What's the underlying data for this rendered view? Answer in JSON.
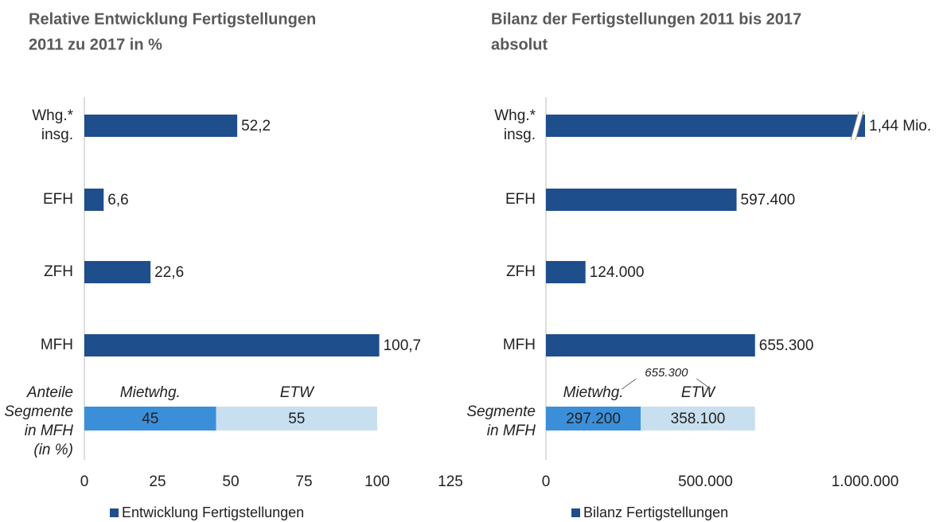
{
  "chart_data": [
    {
      "type": "bar",
      "orientation": "horizontal",
      "title": [
        "Relative Entwicklung Fertigstellungen",
        "2011 zu 2017 in %"
      ],
      "categories": [
        [
          "Whg.*",
          "insg."
        ],
        [
          "EFH"
        ],
        [
          "ZFH"
        ],
        [
          "MFH"
        ]
      ],
      "series": [
        {
          "name": "Entwicklung Fertigstellungen",
          "color": "#1f4e8c",
          "values": [
            52.2,
            6.6,
            22.6,
            100.7
          ],
          "value_labels": [
            "52,2",
            "6,6",
            "22,6",
            "100,7"
          ]
        }
      ],
      "xlim": [
        0,
        125
      ],
      "xticks": [
        0,
        25,
        50,
        75,
        100,
        125
      ],
      "segments": {
        "label": [
          "Anteile",
          "Segmente",
          "in MFH",
          "(in %)"
        ],
        "series": [
          {
            "name": "Mietwhg.",
            "color": "#3b8fd9",
            "values": [
              45
            ]
          },
          {
            "name": "ETW",
            "color": "#c8dff0",
            "values": [
              55
            ]
          }
        ]
      }
    },
    {
      "type": "bar",
      "orientation": "horizontal",
      "title": [
        "Bilanz der Fertigstellungen 2011 bis 2017",
        "absolut"
      ],
      "categories": [
        [
          "Whg.*",
          "insg."
        ],
        [
          "EFH"
        ],
        [
          "ZFH"
        ],
        [
          "MFH"
        ]
      ],
      "series": [
        {
          "name": "Bilanz Fertigstellungen",
          "color": "#1f4e8c",
          "values": [
            1440000,
            597400,
            124000,
            655300
          ],
          "value_labels": [
            "1,44 Mio.",
            "597.400",
            "124.000",
            "655.300"
          ]
        }
      ],
      "xlim": [
        0,
        1000000
      ],
      "xticks": [
        0,
        {
          "value": 500000,
          "label": "500.000"
        },
        {
          "value": 1000000,
          "label": "1.000.000"
        }
      ],
      "segments": {
        "label": [
          "Segmente",
          "in MFH"
        ],
        "total": 655300,
        "total_label": "655.300",
        "series": [
          {
            "name": "Mietwhg.",
            "color": "#3b8fd9",
            "values": [
              297200
            ],
            "value_labels": [
              "297.200"
            ]
          },
          {
            "name": "ETW",
            "color": "#c8dff0",
            "values": [
              358100
            ],
            "value_labels": [
              "358.100"
            ]
          }
        ]
      }
    }
  ]
}
